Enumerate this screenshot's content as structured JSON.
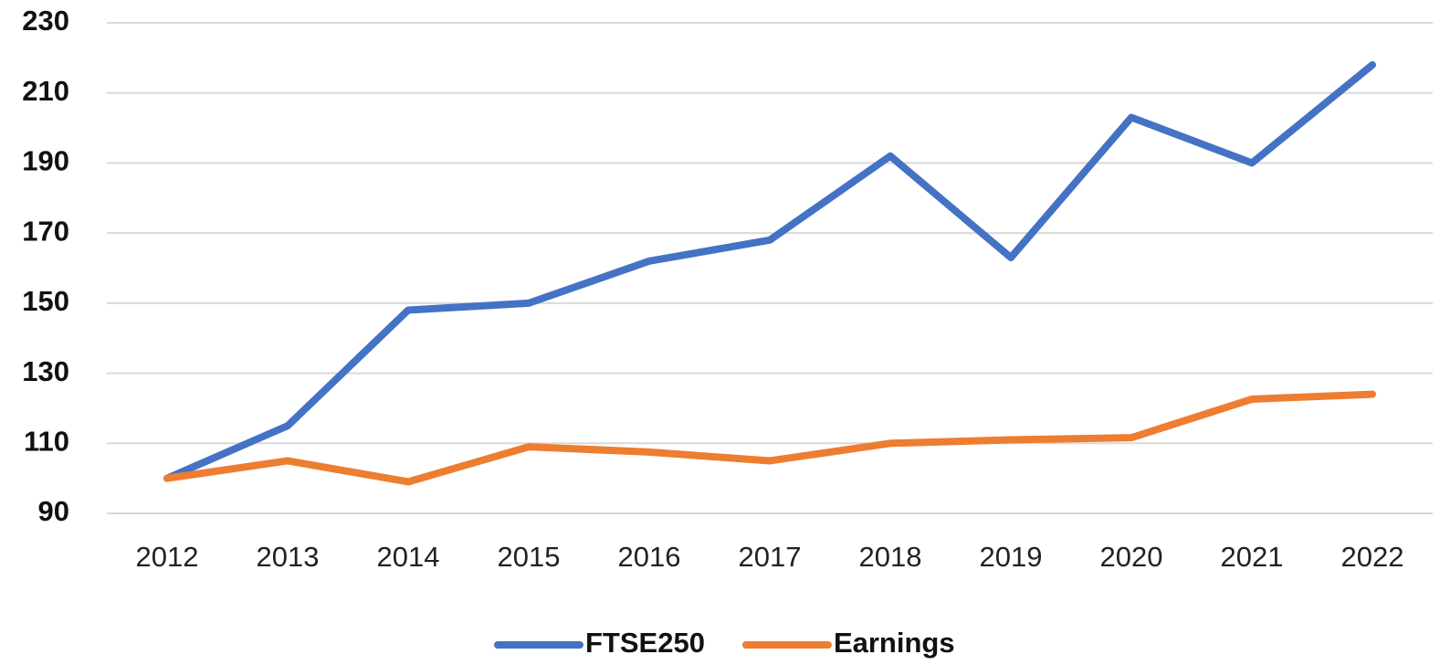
{
  "chart_data": {
    "type": "line",
    "categories": [
      "2012",
      "2013",
      "2014",
      "2015",
      "2016",
      "2017",
      "2018",
      "2019",
      "2020",
      "2021",
      "2022"
    ],
    "series": [
      {
        "name": "FTSE250",
        "color": "#4472c4",
        "values": [
          100,
          115,
          148,
          150,
          162,
          168,
          192,
          163,
          203,
          190,
          218
        ]
      },
      {
        "name": "Earnings",
        "color": "#ed7d31",
        "values": [
          100,
          105,
          99,
          109,
          107.5,
          105,
          110,
          111,
          111.6,
          122.6,
          124
        ]
      }
    ],
    "ylim": [
      90,
      230
    ],
    "yticks": [
      90,
      110,
      130,
      150,
      170,
      190,
      210,
      230
    ],
    "grid": true,
    "legend": "bottom"
  }
}
